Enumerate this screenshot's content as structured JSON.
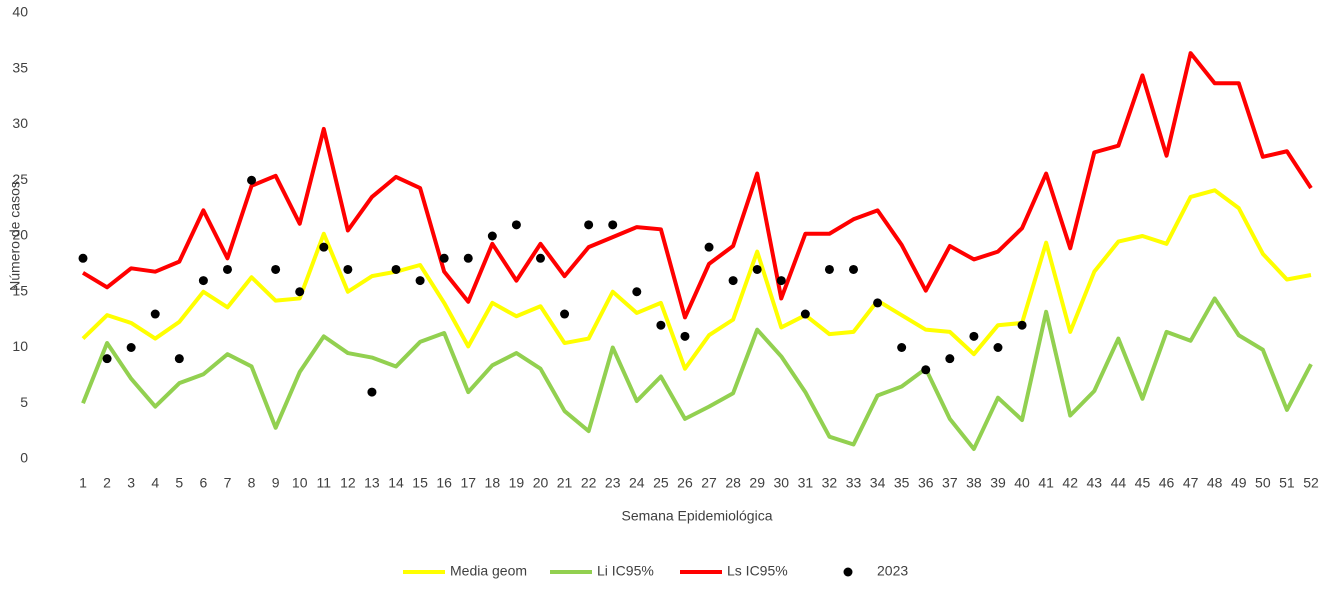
{
  "chart_data": {
    "type": "line",
    "y_label": "Número de casos",
    "x_label": "Semana Epidemiológica",
    "categories": [
      1,
      2,
      3,
      4,
      5,
      6,
      7,
      8,
      9,
      10,
      11,
      12,
      13,
      14,
      15,
      16,
      17,
      18,
      19,
      20,
      21,
      22,
      23,
      24,
      25,
      26,
      27,
      28,
      29,
      30,
      31,
      32,
      33,
      34,
      35,
      36,
      37,
      38,
      39,
      40,
      41,
      42,
      43,
      44,
      45,
      46,
      47,
      48,
      49,
      50,
      51,
      52
    ],
    "ylim": [
      0,
      40
    ],
    "yticks": [
      0,
      5,
      10,
      15,
      20,
      25,
      30,
      35,
      40
    ],
    "grid": false,
    "legend": "bottom",
    "series": [
      {
        "name": "Media geom",
        "color": "#ffff00",
        "style": "line",
        "values": [
          10.8,
          12.9,
          12.2,
          10.8,
          12.3,
          15.0,
          13.6,
          16.3,
          14.2,
          14.4,
          20.2,
          15.0,
          16.4,
          16.8,
          17.4,
          14.0,
          10.1,
          14.0,
          12.8,
          13.7,
          10.4,
          10.8,
          15.0,
          13.1,
          14.0,
          8.1,
          11.1,
          12.5,
          18.6,
          11.8,
          12.9,
          11.2,
          11.4,
          14.2,
          12.9,
          11.6,
          11.4,
          9.4,
          12.0,
          12.2,
          19.4,
          11.4,
          16.8,
          19.5,
          20.0,
          19.3,
          23.5,
          24.1,
          22.5,
          18.4,
          16.1,
          16.5
        ]
      },
      {
        "name": "Li IC95%",
        "color": "#92d050",
        "style": "line",
        "values": [
          5.0,
          10.4,
          7.2,
          4.7,
          6.8,
          7.6,
          9.4,
          8.3,
          2.8,
          7.8,
          11.0,
          9.5,
          9.1,
          8.3,
          10.5,
          11.3,
          6.0,
          8.4,
          9.5,
          8.1,
          4.3,
          2.5,
          10.0,
          5.2,
          7.4,
          3.6,
          4.7,
          5.9,
          11.6,
          9.2,
          6.0,
          2.0,
          1.3,
          5.7,
          6.5,
          8.1,
          3.6,
          0.9,
          5.5,
          3.5,
          13.2,
          3.9,
          6.1,
          10.8,
          5.4,
          11.4,
          10.6,
          14.4,
          11.1,
          9.8,
          4.4,
          8.5
        ]
      },
      {
        "name": "Ls IC95%",
        "color": "#ff0000",
        "style": "line",
        "values": [
          16.7,
          15.4,
          17.1,
          16.8,
          17.7,
          22.3,
          18.0,
          24.5,
          25.4,
          21.1,
          29.6,
          20.5,
          23.5,
          25.3,
          24.3,
          16.8,
          14.1,
          19.3,
          16.0,
          19.3,
          16.4,
          19.0,
          19.9,
          20.8,
          20.6,
          12.7,
          17.5,
          19.1,
          25.6,
          14.4,
          20.2,
          20.2,
          21.5,
          22.3,
          19.2,
          15.1,
          19.1,
          17.9,
          18.6,
          20.7,
          25.6,
          18.9,
          27.5,
          28.1,
          34.4,
          27.2,
          36.4,
          33.7,
          33.7,
          27.1,
          27.6,
          24.3
        ]
      },
      {
        "name": "2023",
        "color": "#000000",
        "style": "markers",
        "values": [
          18,
          9,
          10,
          13,
          9,
          16,
          17,
          25,
          17,
          15,
          19,
          17,
          6,
          17,
          16,
          18,
          18,
          20,
          21,
          18,
          13,
          21,
          21,
          15,
          12,
          11,
          19,
          16,
          17,
          16,
          13,
          17,
          17,
          14,
          10,
          8,
          9,
          11,
          10,
          12,
          null,
          null,
          null,
          null,
          null,
          null,
          null,
          null,
          null,
          null,
          null,
          null
        ]
      }
    ]
  }
}
